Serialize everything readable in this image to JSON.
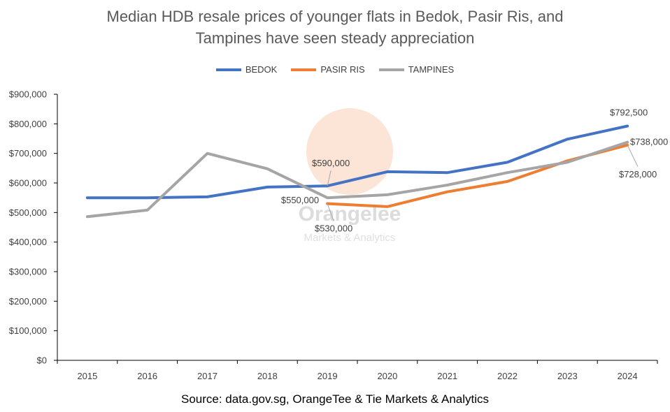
{
  "chart_data": {
    "type": "line",
    "title_lines": [
      "Median HDB resale prices of younger flats in Bedok, Pasir Ris, and",
      "Tampines have seen steady appreciation"
    ],
    "source": "Source: data.gov.sg, OrangeTee & Tie Markets & Analytics",
    "x": [
      "2015",
      "2016",
      "2017",
      "2018",
      "2019",
      "2020",
      "2021",
      "2022",
      "2023",
      "2024"
    ],
    "ylim": [
      0,
      900000
    ],
    "yticks": [
      0,
      100000,
      200000,
      300000,
      400000,
      500000,
      600000,
      700000,
      800000,
      900000
    ],
    "ytick_labels": [
      "$0",
      "$100,000",
      "$200,000",
      "$300,000",
      "$400,000",
      "$500,000",
      "$600,000",
      "$700,000",
      "$800,000",
      "$900,000"
    ],
    "grid": false,
    "legend_position": "top-center",
    "series": [
      {
        "name": "BEDOK",
        "color": "#4472c4",
        "values": [
          550000,
          550000,
          553000,
          586000,
          590000,
          638000,
          635000,
          670000,
          748000,
          792500
        ]
      },
      {
        "name": "PASIR RIS",
        "color": "#ed7d31",
        "values": [
          null,
          null,
          null,
          null,
          530000,
          520000,
          570000,
          605000,
          675000,
          728000
        ]
      },
      {
        "name": "TAMPINES",
        "color": "#a5a5a5",
        "values": [
          486000,
          508000,
          700000,
          648000,
          550000,
          560000,
          593000,
          635000,
          670000,
          738000
        ]
      }
    ],
    "annotations": [
      {
        "text": "$590,000",
        "series": 0,
        "index": 4
      },
      {
        "text": "$550,000",
        "series": 2,
        "index": 4
      },
      {
        "text": "$530,000",
        "series": 1,
        "index": 4
      },
      {
        "text": "$792,500",
        "series": 0,
        "index": 9
      },
      {
        "text": "$738,000",
        "series": 2,
        "index": 9
      },
      {
        "text": "$728,000",
        "series": 1,
        "index": 9
      }
    ]
  },
  "watermark": {
    "brand": "Orangelee",
    "tagline": "Markets & Analytics",
    "color": "#f4a26c"
  }
}
